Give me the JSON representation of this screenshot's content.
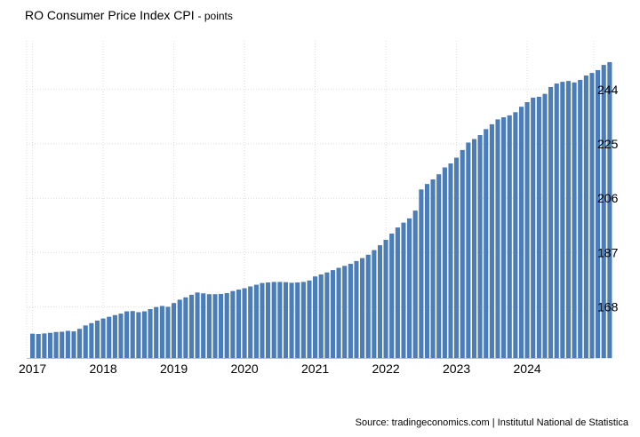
{
  "chart_data": {
    "type": "bar",
    "title": "RO Consumer Price Index CPI",
    "unit": "points",
    "xlabel": "",
    "ylabel": "",
    "x_tick_labels": [
      "2017",
      "2018",
      "2019",
      "2020",
      "2021",
      "2022",
      "2023",
      "2024"
    ],
    "y_tick_values": [
      168,
      187,
      206,
      225,
      244
    ],
    "y_tick_labels": [
      "168",
      "187",
      "206",
      "225",
      "244"
    ],
    "ylim": [
      150.2,
      261
    ],
    "y_axis_position": "right",
    "grid": true,
    "bar_color": "#4a7ebb",
    "start_month": "2017-01",
    "values": [
      158.6,
      158.5,
      158.7,
      158.9,
      159.2,
      159.3,
      159.6,
      159.4,
      160.3,
      161.5,
      162.3,
      163.2,
      163.9,
      164.5,
      165.1,
      165.6,
      166.4,
      166.5,
      166.1,
      166.4,
      167.2,
      167.9,
      168.3,
      168.0,
      169.3,
      170.5,
      171.3,
      172.2,
      173.0,
      172.7,
      172.4,
      172.4,
      172.5,
      172.8,
      173.5,
      174.0,
      174.5,
      175.1,
      175.7,
      176.3,
      176.5,
      176.7,
      176.7,
      176.6,
      176.4,
      176.5,
      176.7,
      177.2,
      178.6,
      179.3,
      180.0,
      180.8,
      181.6,
      182.3,
      183.0,
      184.0,
      185.0,
      186.2,
      187.8,
      189.5,
      191.4,
      193.6,
      195.7,
      197.4,
      198.9,
      201.6,
      209.0,
      210.9,
      212.5,
      214.3,
      216.7,
      218.1,
      220.1,
      222.8,
      225.4,
      226.6,
      228.0,
      230.1,
      231.8,
      233.5,
      234.2,
      234.9,
      236.0,
      237.9,
      239.5,
      241.1,
      241.4,
      242.4,
      244.8,
      246.0,
      246.6,
      246.9,
      246.4,
      247.3,
      248.8,
      249.7,
      250.7,
      252.5,
      253.5
    ]
  },
  "source": "Source: tradingeconomics.com | Institutul National de Statistica"
}
